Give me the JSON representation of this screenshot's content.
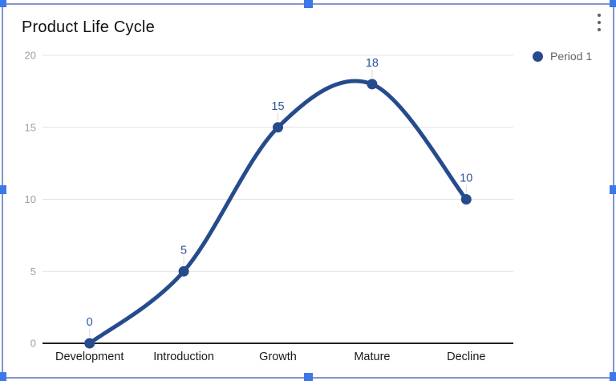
{
  "chart_data": {
    "type": "line",
    "title": "Product Life Cycle",
    "categories": [
      "Development",
      "Introduction",
      "Growth",
      "Mature",
      "Decline"
    ],
    "series": [
      {
        "name": "Period 1",
        "values": [
          0,
          5,
          15,
          18,
          10
        ]
      }
    ],
    "xlabel": "",
    "ylabel": "",
    "ylim": [
      0,
      20
    ],
    "yticks": [
      0,
      5,
      10,
      15,
      20
    ],
    "grid": true,
    "smooth": true,
    "data_labels": true,
    "legend_position": "top-right"
  },
  "menu": {
    "kebab_icon": "⋮"
  },
  "selection": {
    "handles": [
      "top-left",
      "top-middle",
      "top-right",
      "middle-left",
      "middle-right",
      "bottom-left",
      "bottom-middle",
      "bottom-right"
    ]
  },
  "colors": {
    "series_line": "#264b8d",
    "data_point": "#264b8d",
    "data_label": "#30549a",
    "legend_dot": "#264b8d",
    "grid_line": "#e3e3e3",
    "axis_line": "#222222",
    "y_tick_text": "#9aa0a6",
    "x_tick_text": "#1a1a1a",
    "callout_line": "#d9d9d9",
    "selection_border": "#8096cd",
    "selection_handle": "#3c78e8",
    "kebab_dots": "#5f5f5f",
    "background": "#ffffff"
  }
}
